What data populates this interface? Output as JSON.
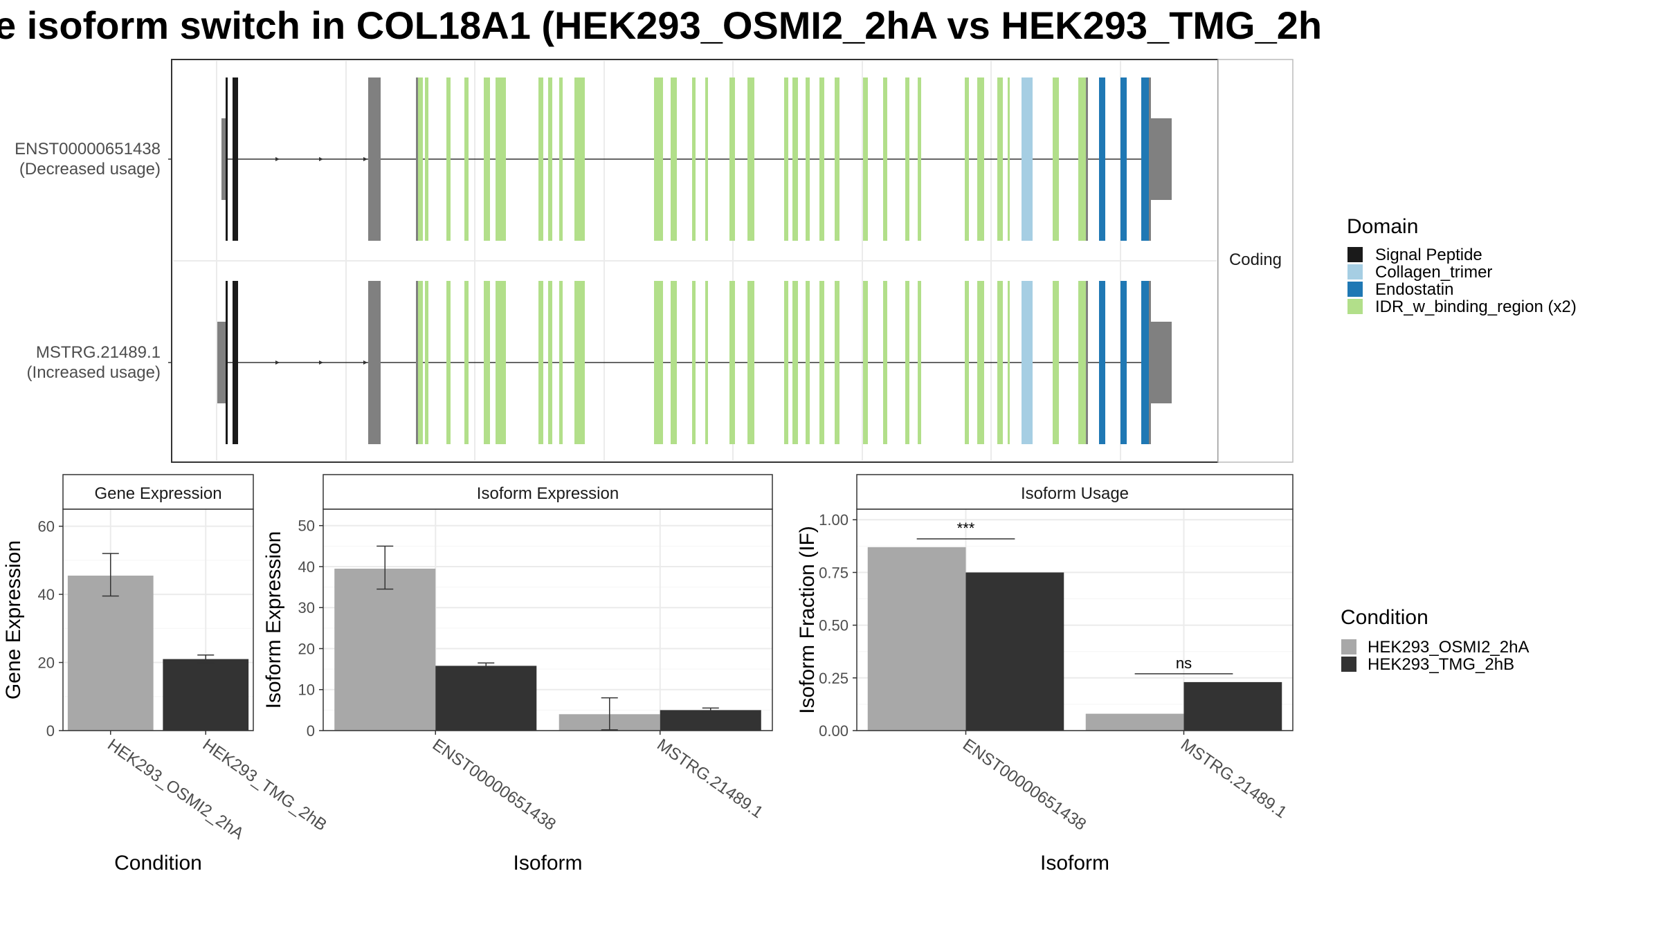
{
  "title": "e isoform switch in COL18A1 (HEK293_OSMI2_2hA vs HEK293_TMG_2h",
  "colors": {
    "osmi": "#a8a8a8",
    "tmg": "#333333",
    "exon_grey": "#808080",
    "signal_peptide": "#1a1a1a",
    "collagen_trimer": "#a6cee3",
    "endostatin": "#1f78b4",
    "idr": "#b2df8a"
  },
  "structure": {
    "strip_label": "Coding",
    "isoforms": [
      {
        "id": "ENST00000651438",
        "usage_label": "(Decreased usage)"
      },
      {
        "id": "MSTRG.21489.1",
        "usage_label": "(Increased usage)"
      }
    ],
    "domain_legend_title": "Domain",
    "domain_legend": [
      {
        "label": "Signal Peptide",
        "color": "#1a1a1a"
      },
      {
        "label": "Collagen_trimer",
        "color": "#a6cee3"
      },
      {
        "label": "Endostatin",
        "color": "#1f78b4"
      },
      {
        "label": "IDR_w_binding_region (x2)",
        "color": "#b2df8a"
      }
    ]
  },
  "condition_legend": {
    "title": "Condition",
    "items": [
      {
        "label": "HEK293_OSMI2_2hA",
        "color": "#a8a8a8"
      },
      {
        "label": "HEK293_TMG_2hB",
        "color": "#333333"
      }
    ]
  },
  "chart_data": [
    {
      "type": "bar",
      "panel": "Gene Expression",
      "xlabel": "Condition",
      "ylabel": "Gene Expression",
      "ylim": [
        0,
        65
      ],
      "yticks": [
        "0",
        "20",
        "40",
        "60"
      ],
      "categories": [
        "HEK293_OSMI2_2hA",
        "HEK293_TMG_2hB"
      ],
      "series": [
        {
          "name": "HEK293_OSMI2_2hA",
          "values": [
            45.5,
            null
          ],
          "err_low": [
            39.5,
            null
          ],
          "err_high": [
            52,
            null
          ]
        },
        {
          "name": "HEK293_TMG_2hB",
          "values": [
            null,
            21
          ],
          "err_low": [
            null,
            19.8
          ],
          "err_high": [
            null,
            22.2
          ]
        }
      ],
      "grid": true
    },
    {
      "type": "bar",
      "panel": "Isoform Expression",
      "xlabel": "Isoform",
      "ylabel": "Isoform Expression",
      "ylim": [
        0,
        54
      ],
      "yticks": [
        "0",
        "10",
        "20",
        "30",
        "40",
        "50"
      ],
      "categories": [
        "ENST00000651438",
        "MSTRG.21489.1"
      ],
      "series": [
        {
          "name": "HEK293_OSMI2_2hA",
          "values": [
            39.5,
            4
          ],
          "err_low": [
            34.5,
            0.2
          ],
          "err_high": [
            45,
            8
          ]
        },
        {
          "name": "HEK293_TMG_2hB",
          "values": [
            15.8,
            5
          ],
          "err_low": [
            15.2,
            4.5
          ],
          "err_high": [
            16.5,
            5.5
          ]
        }
      ],
      "grid": true
    },
    {
      "type": "bar",
      "panel": "Isoform Usage",
      "xlabel": "Isoform",
      "ylabel": "Isoform Fraction (IF)",
      "ylim": [
        0,
        1.05
      ],
      "yticks": [
        "0.00",
        "0.25",
        "0.50",
        "0.75",
        "1.00"
      ],
      "categories": [
        "ENST00000651438",
        "MSTRG.21489.1"
      ],
      "series": [
        {
          "name": "HEK293_OSMI2_2hA",
          "values": [
            0.87,
            0.08
          ]
        },
        {
          "name": "HEK293_TMG_2hB",
          "values": [
            0.75,
            0.23
          ]
        }
      ],
      "annotations": [
        "***",
        "ns"
      ],
      "grid": true
    }
  ]
}
